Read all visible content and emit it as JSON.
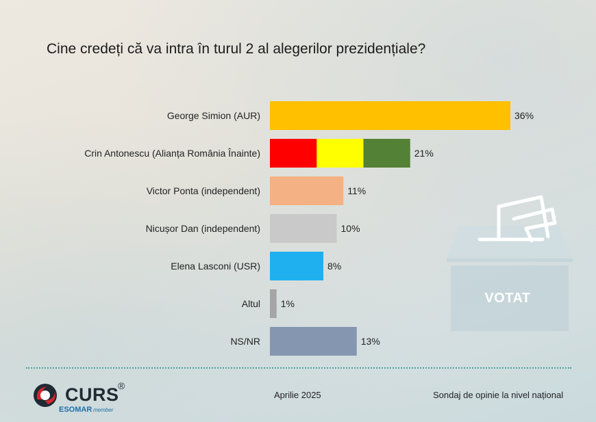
{
  "title": "Cine credeți că va intra în turul 2 al alegerilor prezidențiale?",
  "chart_data": {
    "type": "bar",
    "orientation": "horizontal",
    "categories": [
      "George Simion (AUR)",
      "Crin Antonescu (Alianța România Înainte)",
      "Victor Ponta (independent)",
      "Nicușor Dan (independent)",
      "Elena Lasconi (USR)",
      "Altul",
      "NS/NR"
    ],
    "values": [
      36,
      21,
      11,
      10,
      8,
      1,
      13
    ],
    "value_labels": [
      "36%",
      "21%",
      "11%",
      "10%",
      "8%",
      "1%",
      "13%"
    ],
    "colors": [
      [
        "#ffc000"
      ],
      [
        "#ff0000",
        "#ffff00",
        "#538135"
      ],
      [
        "#f4b183"
      ],
      [
        "#c9c9c9"
      ],
      [
        "#1fb0ef"
      ],
      [
        "#a5a5a5"
      ],
      [
        "#8496b0"
      ]
    ],
    "xlim": [
      0,
      36
    ],
    "grid": false,
    "legend": "none"
  },
  "ballot": {
    "label": "VOTAT"
  },
  "footer": {
    "logo": "CURS",
    "logo_reg": "®",
    "logo_esomar": "ESOMAR",
    "logo_member": "member",
    "date": "Aprilie 2025",
    "note": "Sondaj de opinie la nivel național"
  }
}
